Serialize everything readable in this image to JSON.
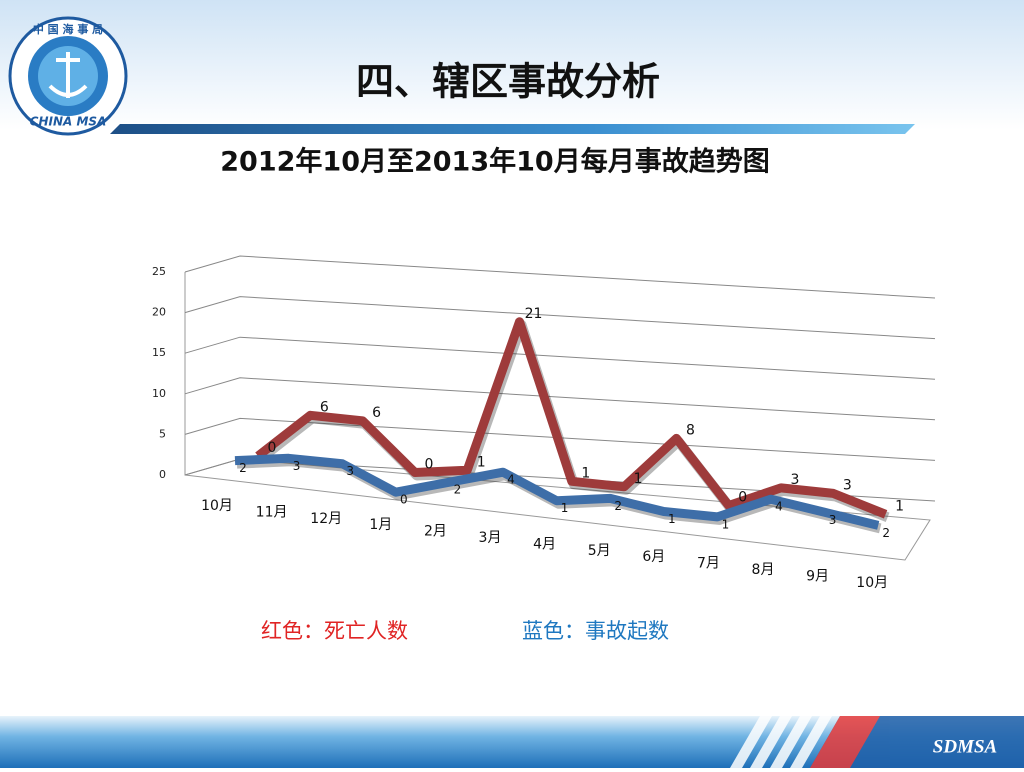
{
  "header": {
    "logo_top": "中 国 海 事 局",
    "logo_bottom": "CHINA MSA",
    "title": "四、辖区事故分析"
  },
  "chart_data": {
    "type": "line3d",
    "title": "2012年10月至2013年10月每月事故趋势图",
    "categories": [
      "10月",
      "11月",
      "12月",
      "1月",
      "2月",
      "3月",
      "4月",
      "5月",
      "6月",
      "7月",
      "8月",
      "9月",
      "10月"
    ],
    "series": [
      {
        "name": "红色：死亡人数",
        "color": "#9e3b3b",
        "values": [
          0,
          6,
          6,
          0,
          1,
          21,
          1,
          1,
          8,
          0,
          3,
          3,
          1
        ]
      },
      {
        "name": "蓝色：事故起数",
        "color": "#3e6ea8",
        "values": [
          2,
          3,
          3,
          0,
          2,
          4,
          1,
          2,
          1,
          1,
          4,
          3,
          2
        ]
      }
    ],
    "ylim": [
      0,
      25
    ],
    "yticks": [
      0,
      5,
      10,
      15,
      20,
      25
    ],
    "grid": true
  },
  "footer": {
    "brand": "SDMSA"
  }
}
